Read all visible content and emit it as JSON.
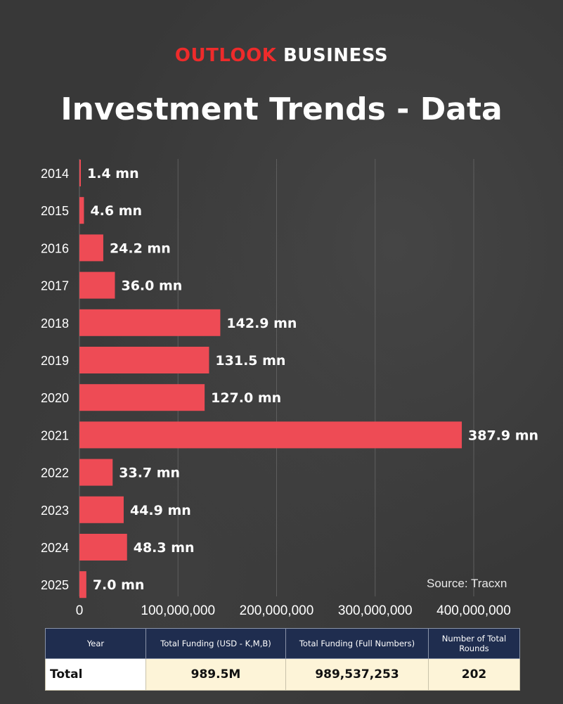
{
  "brand": {
    "part1": "OUTLOOK",
    "part2": "BUSINESS"
  },
  "title": "Investment Trends - Data",
  "source": "Source: Tracxn",
  "colors": {
    "bar": "#ee4b55",
    "brand_red": "#ee2b2b",
    "header_bg": "#1f2d4f",
    "cell_bg": "#fdf4d8"
  },
  "chart_data": {
    "type": "bar",
    "orientation": "horizontal",
    "categories": [
      "2014",
      "2015",
      "2016",
      "2017",
      "2018",
      "2019",
      "2020",
      "2021",
      "2022",
      "2023",
      "2024",
      "2025"
    ],
    "values": [
      1400000,
      4600000,
      24200000,
      36000000,
      142900000,
      131500000,
      127000000,
      387900000,
      33700000,
      44900000,
      48300000,
      7000000
    ],
    "data_labels": [
      "1.4 mn",
      "4.6 mn",
      "24.2 mn",
      "36.0 mn",
      "142.9 mn",
      "131.5 mn",
      "127.0 mn",
      "387.9 mn",
      "33.7 mn",
      "44.9 mn",
      "48.3 mn",
      "7.0 mn"
    ],
    "xlim": [
      0,
      400000000
    ],
    "x_ticks": [
      0,
      100000000,
      200000000,
      300000000,
      400000000
    ],
    "x_tick_labels": [
      "0",
      "100,000,000",
      "200,000,000",
      "300,000,000",
      "400,000,000"
    ],
    "grid": true
  },
  "table": {
    "headers": [
      "Year",
      "Total Funding (USD - K,M,B)",
      "Total Funding (Full Numbers)",
      "Number of Total Rounds"
    ],
    "row": [
      "Total",
      "989.5M",
      "989,537,253",
      "202"
    ]
  }
}
